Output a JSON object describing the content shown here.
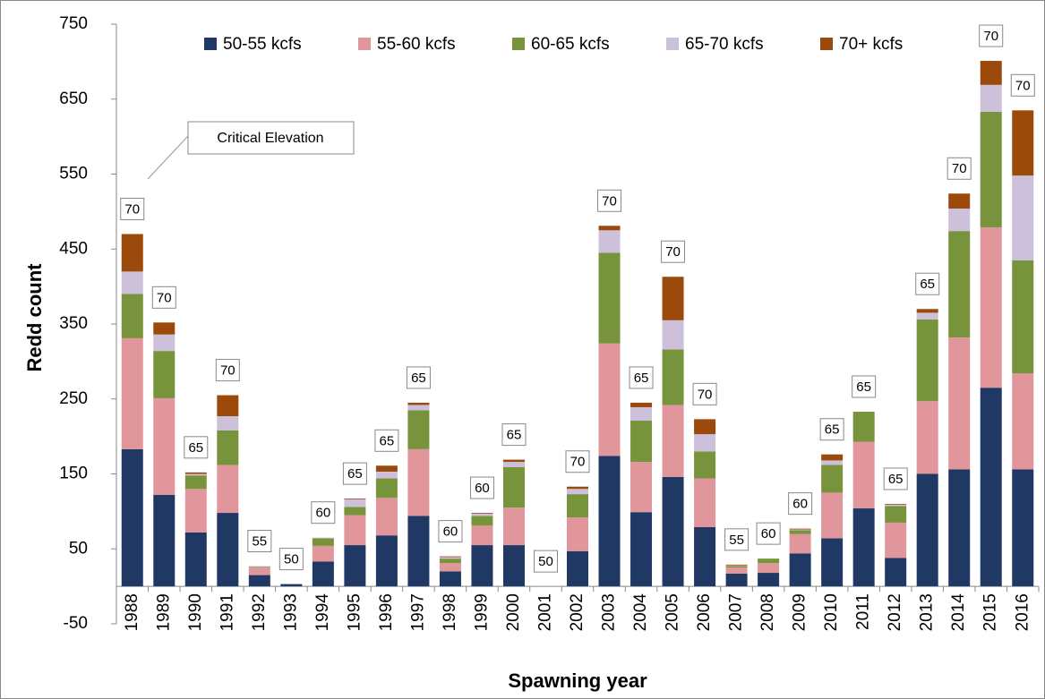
{
  "chart_data": {
    "type": "stacked_bar",
    "y_label": "Redd count",
    "x_label": "Spawning year",
    "annotation": "Critical Elevation",
    "categories": [
      "1988",
      "1989",
      "1990",
      "1991",
      "1992",
      "1993",
      "1994",
      "1995",
      "1996",
      "1997",
      "1998",
      "1999",
      "2000",
      "2001",
      "2002",
      "2003",
      "2004",
      "2005",
      "2006",
      "2007",
      "2008",
      "2009",
      "2010",
      "2011",
      "2012",
      "2013",
      "2014",
      "2015",
      "2016"
    ],
    "series": [
      {
        "name": "50-55 kcfs",
        "color": "#1f3864",
        "values": [
          183,
          122,
          72,
          98,
          15,
          3,
          33,
          55,
          68,
          94,
          20,
          55,
          55,
          0,
          47,
          174,
          99,
          146,
          79,
          17,
          18,
          44,
          64,
          104,
          38,
          150,
          156,
          265,
          156
        ]
      },
      {
        "name": "55-60 kcfs",
        "color": "#e0969a",
        "values": [
          148,
          129,
          58,
          64,
          10,
          0,
          21,
          40,
          50,
          89,
          11,
          26,
          50,
          0,
          45,
          150,
          67,
          96,
          65,
          8,
          13,
          26,
          61,
          89,
          47,
          97,
          176,
          214,
          128
        ]
      },
      {
        "name": "60-65 kcfs",
        "color": "#77933c",
        "values": [
          59,
          63,
          18,
          46,
          1,
          0,
          10,
          11,
          26,
          52,
          6,
          13,
          54,
          0,
          31,
          121,
          55,
          74,
          36,
          2,
          6,
          5,
          37,
          40,
          22,
          109,
          142,
          154,
          151
        ]
      },
      {
        "name": "65-70 kcfs",
        "color": "#ccc0da",
        "values": [
          30,
          22,
          2,
          19,
          1,
          0,
          1,
          10,
          9,
          7,
          2,
          3,
          7,
          0,
          7,
          30,
          18,
          39,
          23,
          1,
          0,
          1,
          6,
          0,
          2,
          9,
          30,
          36,
          113
        ]
      },
      {
        "name": "70+ kcfs",
        "color": "#9c4a0c",
        "values": [
          50,
          16,
          2,
          28,
          0,
          0,
          0,
          1,
          8,
          3,
          1,
          1,
          3,
          0,
          3,
          6,
          6,
          58,
          20,
          1,
          0,
          1,
          8,
          0,
          1,
          5,
          20,
          32,
          87
        ]
      }
    ],
    "elevation_labels": [
      70,
      70,
      65,
      70,
      55,
      50,
      60,
      65,
      65,
      65,
      60,
      60,
      65,
      50,
      70,
      70,
      65,
      70,
      70,
      55,
      60,
      60,
      65,
      65,
      65,
      65,
      70,
      70,
      70
    ],
    "ylim": [
      -50,
      750
    ],
    "yticks": [
      -50,
      50,
      150,
      250,
      350,
      450,
      550,
      650,
      750
    ],
    "grid": false,
    "legend": "top"
  }
}
